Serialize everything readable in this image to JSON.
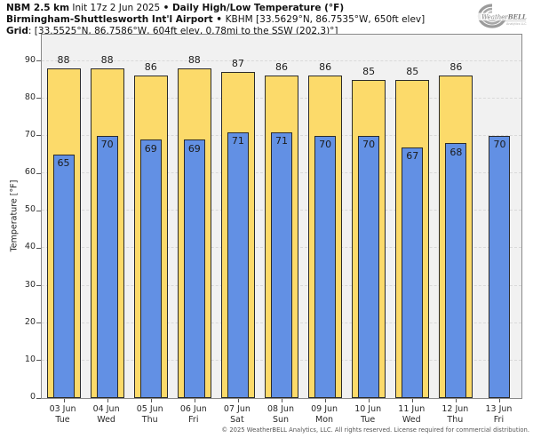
{
  "header": {
    "model": "NBM 2.5 km",
    "init": " Init 17z 2 Jun 2025 ",
    "bullet1": "• ",
    "product": "Daily High/Low Temperature (°F)",
    "station": "Birmingham-Shuttlesworth Int'l Airport",
    "bullet2": " • ",
    "station_meta": "KBHM [33.5629°N, 86.7535°W, 650ft elev]",
    "grid_label": "Grid",
    "grid_meta": ": [33.5525°N, 86.7586°W, 604ft elev, 0.78mi to the SSW (202.3)°]"
  },
  "logo": {
    "brand_weather": "Weather",
    "brand_bell": "BELL",
    "tagline": "Analytics LLC"
  },
  "chart_data": {
    "type": "bar",
    "title": "NBM 2.5 km Init 17z 2 Jun 2025 • Daily High/Low Temperature (°F)",
    "subtitle": "Birmingham-Shuttlesworth Int'l Airport • KBHM",
    "ylabel": "Temperature [°F]",
    "ylim": [
      0,
      97
    ],
    "yticks": [
      0,
      10,
      20,
      30,
      40,
      50,
      60,
      70,
      80,
      90
    ],
    "grid": true,
    "legend": "none",
    "categories": [
      "03 Jun",
      "04 Jun",
      "05 Jun",
      "06 Jun",
      "07 Jun",
      "08 Jun",
      "09 Jun",
      "10 Jun",
      "11 Jun",
      "12 Jun",
      "13 Jun"
    ],
    "weekdays": [
      "Tue",
      "Wed",
      "Thu",
      "Fri",
      "Sat",
      "Sun",
      "Mon",
      "Tue",
      "Wed",
      "Thu",
      "Fri"
    ],
    "series": [
      {
        "name": "High",
        "color": "#FCDA6A",
        "values": [
          88,
          88,
          86,
          88,
          87,
          86,
          86,
          85,
          85,
          86,
          null
        ]
      },
      {
        "name": "Low",
        "color": "#6290E4",
        "values": [
          65,
          70,
          69,
          69,
          71,
          71,
          70,
          70,
          67,
          68,
          70
        ]
      }
    ]
  },
  "footer": {
    "copyright": "© 2025 WeatherBELL Analytics, LLC. All rights reserved. License required for commercial distribution."
  },
  "colors": {
    "high_bar": "#FCDA6A",
    "low_bar": "#6290E4",
    "bar_border": "#2b2b2b",
    "plot_background": "#f1f1f1",
    "gridline": "#d9d9d9"
  }
}
